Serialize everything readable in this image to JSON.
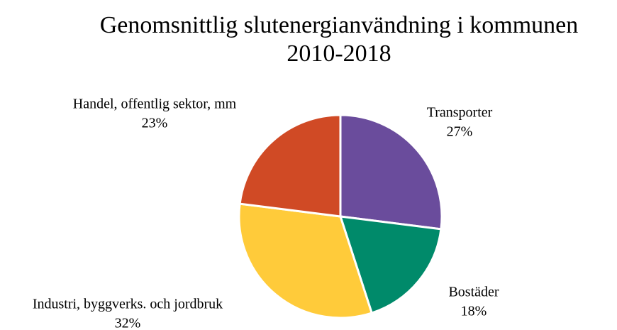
{
  "chart_data": {
    "type": "pie",
    "title": [
      "Genomsnittlig slutenergianvändning i kommunen",
      "2010-2018"
    ],
    "categories": [
      "Transporter",
      "Bostäder",
      "Industri, byggverks. och jordbruk",
      "Handel, offentlig sektor, mm"
    ],
    "values": [
      27,
      18,
      32,
      23
    ],
    "value_labels": [
      "27%",
      "18%",
      "32%",
      "23%"
    ],
    "colors": [
      "#6a4c9c",
      "#008a6a",
      "#ffcb3a",
      "#d04a25"
    ]
  }
}
